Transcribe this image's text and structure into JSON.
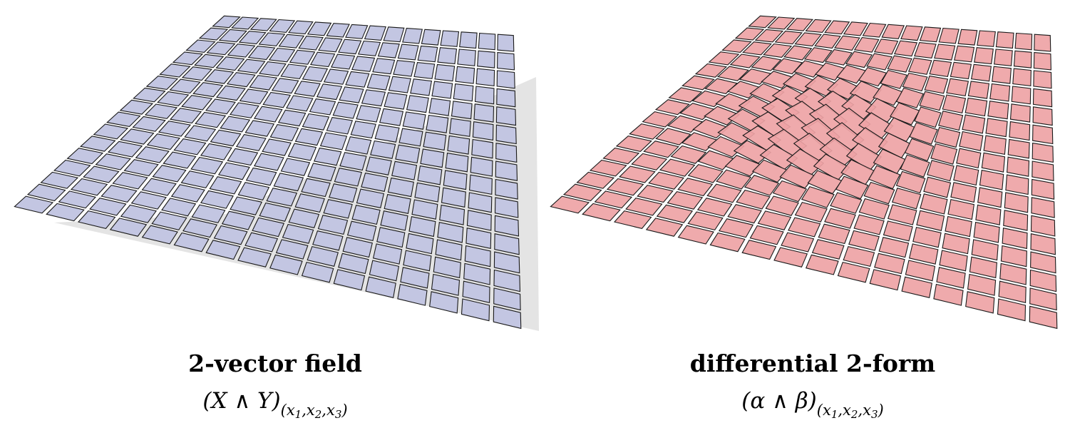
{
  "panels": [
    {
      "id": "vector-field",
      "title": "2-vector field",
      "formula": {
        "open": "(",
        "a": "X",
        "wedge": "∧",
        "b": "Y",
        "close": ")",
        "subscript": {
          "open": "(",
          "v1": "x",
          "i1": "1",
          "v2": "x",
          "i2": "2",
          "v3": "x",
          "i3": "3",
          "sep": ",",
          "close": ")"
        }
      },
      "fill": "#c3c6e2",
      "stroke": "#1a1a1a",
      "shadow": "#d9d9d9",
      "grid": {
        "rows": 16,
        "cols": 16
      },
      "twist": 0
    },
    {
      "id": "differential-form",
      "title": "differential 2-form",
      "formula": {
        "open": "(",
        "a": "α",
        "wedge": "∧",
        "b": "β",
        "close": ")",
        "subscript": {
          "open": "(",
          "v1": "x",
          "i1": "1",
          "v2": "x",
          "i2": "2",
          "v3": "x",
          "i3": "3",
          "sep": ",",
          "close": ")"
        }
      },
      "fill": "#eea3a5",
      "stroke": "#1a1a1a",
      "shadow": "#ffffff",
      "grid": {
        "rows": 16,
        "cols": 16
      },
      "twist": 1
    }
  ]
}
